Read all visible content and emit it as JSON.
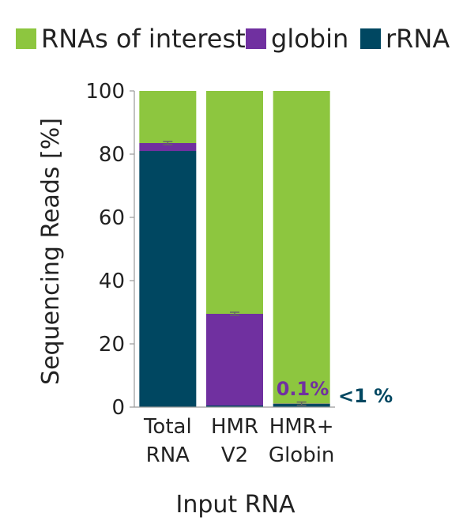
{
  "chart_data": {
    "type": "bar",
    "stacked": true,
    "categories": [
      [
        "Total",
        "RNA"
      ],
      [
        "HMR",
        "V2"
      ],
      [
        "HMR+",
        "Globin"
      ]
    ],
    "series": [
      {
        "name": "rRNA",
        "color": "#004761",
        "values": [
          81,
          0.5,
          1
        ]
      },
      {
        "name": "globin",
        "color": "#7030a0",
        "values": [
          2.5,
          29,
          0.1
        ]
      },
      {
        "name": "RNAs of interest",
        "color": "#8dc63f",
        "values": [
          16.5,
          70.5,
          98.9
        ]
      }
    ],
    "legend": {
      "position": "top",
      "order": [
        "RNAs of interest",
        "globin",
        "rRNA"
      ]
    },
    "error_bar_tops": [
      83.5,
      29.5,
      1.1
    ],
    "error_bar_color": "#666666",
    "ylabel": "Sequencing Reads [%]",
    "xlabel": "Input RNA",
    "ylim": [
      0,
      100
    ],
    "yticks": [
      "0",
      "20",
      "40",
      "60",
      "80",
      "100"
    ],
    "grid": false,
    "annotations": [
      {
        "text": "0.1%",
        "color": "#7030a0"
      },
      {
        "text": "<1 %",
        "color": "#004761"
      }
    ]
  }
}
